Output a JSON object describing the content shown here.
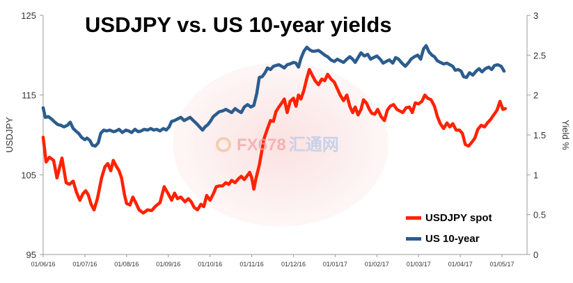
{
  "chart_data": {
    "type": "line",
    "title": "USDJPY vs. US 10-year yields",
    "ylabel_left": "USDJPY",
    "ylabel_right": "Yield %",
    "ylim_left": [
      95,
      125
    ],
    "ylim_right": [
      0,
      3
    ],
    "yticks_left": [
      "95",
      "105",
      "115",
      "125"
    ],
    "yticks_right": [
      "0",
      "0.5",
      "1",
      "1.5",
      "2",
      "2.5",
      "3"
    ],
    "x_tick_labels": [
      "01/06/16",
      "01/07/16",
      "01/08/16",
      "01/09/16",
      "01/10/16",
      "01/11/16",
      "01/12/16",
      "01/01/17",
      "01/02/17",
      "01/03/17",
      "01/04/17",
      "01/05/17"
    ],
    "x_range_months": [
      0,
      11.6
    ],
    "legend_position": "bottom-right",
    "grid": false,
    "series": [
      {
        "name": "USDJPY spot",
        "axis": "left",
        "color": "#ff2200",
        "points": [
          [
            0.0,
            109.7
          ],
          [
            0.07,
            106.6
          ],
          [
            0.15,
            107.2
          ],
          [
            0.25,
            106.8
          ],
          [
            0.33,
            104.6
          ],
          [
            0.45,
            107.1
          ],
          [
            0.55,
            104.0
          ],
          [
            0.63,
            103.8
          ],
          [
            0.72,
            104.2
          ],
          [
            0.8,
            102.8
          ],
          [
            0.88,
            101.8
          ],
          [
            0.95,
            102.6
          ],
          [
            1.02,
            103.0
          ],
          [
            1.08,
            102.5
          ],
          [
            1.15,
            101.3
          ],
          [
            1.22,
            100.6
          ],
          [
            1.3,
            102.0
          ],
          [
            1.4,
            104.6
          ],
          [
            1.48,
            106.0
          ],
          [
            1.55,
            106.4
          ],
          [
            1.62,
            105.5
          ],
          [
            1.68,
            106.8
          ],
          [
            1.75,
            106.1
          ],
          [
            1.82,
            105.5
          ],
          [
            1.88,
            104.6
          ],
          [
            1.95,
            102.5
          ],
          [
            2.0,
            101.4
          ],
          [
            2.08,
            101.2
          ],
          [
            2.15,
            102.2
          ],
          [
            2.22,
            101.5
          ],
          [
            2.3,
            100.6
          ],
          [
            2.4,
            100.2
          ],
          [
            2.5,
            100.6
          ],
          [
            2.6,
            100.5
          ],
          [
            2.7,
            101.1
          ],
          [
            2.8,
            101.5
          ],
          [
            2.9,
            103.5
          ],
          [
            3.0,
            102.6
          ],
          [
            3.08,
            101.8
          ],
          [
            3.15,
            102.7
          ],
          [
            3.22,
            102.0
          ],
          [
            3.3,
            102.2
          ],
          [
            3.4,
            101.6
          ],
          [
            3.48,
            102.0
          ],
          [
            3.55,
            101.6
          ],
          [
            3.62,
            100.9
          ],
          [
            3.7,
            100.6
          ],
          [
            3.78,
            101.3
          ],
          [
            3.85,
            101.0
          ],
          [
            3.92,
            102.4
          ],
          [
            4.0,
            101.8
          ],
          [
            4.08,
            102.6
          ],
          [
            4.15,
            103.5
          ],
          [
            4.22,
            103.6
          ],
          [
            4.3,
            103.6
          ],
          [
            4.38,
            104.0
          ],
          [
            4.45,
            103.8
          ],
          [
            4.52,
            104.3
          ],
          [
            4.6,
            104.0
          ],
          [
            4.68,
            104.5
          ],
          [
            4.75,
            104.8
          ],
          [
            4.82,
            104.4
          ],
          [
            4.88,
            104.8
          ],
          [
            4.95,
            105.3
          ],
          [
            5.0,
            104.6
          ],
          [
            5.05,
            103.2
          ],
          [
            5.1,
            104.5
          ],
          [
            5.18,
            106.2
          ],
          [
            5.25,
            108.2
          ],
          [
            5.3,
            109.6
          ],
          [
            5.38,
            110.8
          ],
          [
            5.45,
            111.8
          ],
          [
            5.52,
            111.7
          ],
          [
            5.58,
            112.9
          ],
          [
            5.65,
            113.5
          ],
          [
            5.72,
            114.0
          ],
          [
            5.78,
            114.5
          ],
          [
            5.85,
            112.8
          ],
          [
            5.92,
            114.2
          ],
          [
            6.0,
            114.6
          ],
          [
            6.06,
            113.6
          ],
          [
            6.12,
            115.0
          ],
          [
            6.18,
            114.5
          ],
          [
            6.25,
            115.6
          ],
          [
            6.32,
            117.1
          ],
          [
            6.38,
            118.2
          ],
          [
            6.45,
            117.5
          ],
          [
            6.52,
            116.8
          ],
          [
            6.6,
            116.3
          ],
          [
            6.68,
            117.0
          ],
          [
            6.75,
            116.8
          ],
          [
            6.82,
            117.6
          ],
          [
            6.9,
            117.0
          ],
          [
            6.98,
            116.6
          ],
          [
            7.05,
            115.8
          ],
          [
            7.12,
            115.0
          ],
          [
            7.2,
            114.3
          ],
          [
            7.28,
            115.0
          ],
          [
            7.35,
            113.6
          ],
          [
            7.42,
            112.8
          ],
          [
            7.48,
            113.5
          ],
          [
            7.55,
            112.5
          ],
          [
            7.62,
            113.2
          ],
          [
            7.68,
            114.4
          ],
          [
            7.75,
            114.0
          ],
          [
            7.82,
            113.2
          ],
          [
            7.88,
            112.7
          ],
          [
            7.95,
            112.6
          ],
          [
            8.02,
            113.2
          ],
          [
            8.1,
            112.3
          ],
          [
            8.18,
            111.8
          ],
          [
            8.25,
            113.1
          ],
          [
            8.32,
            113.6
          ],
          [
            8.4,
            113.8
          ],
          [
            8.48,
            113.2
          ],
          [
            8.55,
            113.0
          ],
          [
            8.62,
            112.8
          ],
          [
            8.7,
            113.4
          ],
          [
            8.78,
            113.5
          ],
          [
            8.85,
            112.8
          ],
          [
            8.92,
            114.0
          ],
          [
            9.0,
            113.9
          ],
          [
            9.08,
            114.2
          ],
          [
            9.15,
            115.0
          ],
          [
            9.22,
            114.6
          ],
          [
            9.3,
            114.4
          ],
          [
            9.38,
            113.6
          ],
          [
            9.45,
            112.3
          ],
          [
            9.52,
            111.4
          ],
          [
            9.6,
            110.8
          ],
          [
            9.68,
            111.5
          ],
          [
            9.75,
            111.0
          ],
          [
            9.82,
            111.4
          ],
          [
            9.9,
            110.6
          ],
          [
            9.98,
            110.6
          ],
          [
            10.05,
            110.2
          ],
          [
            10.12,
            108.8
          ],
          [
            10.2,
            108.6
          ],
          [
            10.28,
            109.1
          ],
          [
            10.35,
            109.6
          ],
          [
            10.42,
            110.7
          ],
          [
            10.5,
            111.2
          ],
          [
            10.58,
            111.0
          ],
          [
            10.65,
            111.5
          ],
          [
            10.72,
            111.9
          ],
          [
            10.8,
            112.5
          ],
          [
            10.88,
            113.1
          ],
          [
            10.95,
            114.2
          ],
          [
            11.02,
            113.2
          ],
          [
            11.08,
            113.3
          ]
        ]
      },
      {
        "name": "US 10-year",
        "axis": "right",
        "color": "#2b5c8e",
        "points": [
          [
            0.0,
            1.84
          ],
          [
            0.05,
            1.72
          ],
          [
            0.12,
            1.73
          ],
          [
            0.2,
            1.7
          ],
          [
            0.28,
            1.66
          ],
          [
            0.35,
            1.63
          ],
          [
            0.42,
            1.62
          ],
          [
            0.5,
            1.6
          ],
          [
            0.58,
            1.62
          ],
          [
            0.65,
            1.66
          ],
          [
            0.72,
            1.58
          ],
          [
            0.78,
            1.55
          ],
          [
            0.85,
            1.52
          ],
          [
            0.92,
            1.47
          ],
          [
            1.0,
            1.44
          ],
          [
            1.05,
            1.46
          ],
          [
            1.12,
            1.43
          ],
          [
            1.18,
            1.37
          ],
          [
            1.25,
            1.36
          ],
          [
            1.32,
            1.4
          ],
          [
            1.38,
            1.52
          ],
          [
            1.45,
            1.56
          ],
          [
            1.52,
            1.55
          ],
          [
            1.6,
            1.56
          ],
          [
            1.68,
            1.54
          ],
          [
            1.75,
            1.55
          ],
          [
            1.82,
            1.57
          ],
          [
            1.9,
            1.53
          ],
          [
            1.98,
            1.56
          ],
          [
            2.05,
            1.55
          ],
          [
            2.12,
            1.53
          ],
          [
            2.2,
            1.57
          ],
          [
            2.28,
            1.54
          ],
          [
            2.35,
            1.55
          ],
          [
            2.42,
            1.57
          ],
          [
            2.5,
            1.56
          ],
          [
            2.58,
            1.58
          ],
          [
            2.65,
            1.56
          ],
          [
            2.72,
            1.57
          ],
          [
            2.8,
            1.55
          ],
          [
            2.88,
            1.58
          ],
          [
            2.95,
            1.56
          ],
          [
            3.02,
            1.6
          ],
          [
            3.08,
            1.67
          ],
          [
            3.15,
            1.68
          ],
          [
            3.22,
            1.7
          ],
          [
            3.3,
            1.72
          ],
          [
            3.38,
            1.68
          ],
          [
            3.45,
            1.7
          ],
          [
            3.52,
            1.72
          ],
          [
            3.6,
            1.68
          ],
          [
            3.68,
            1.64
          ],
          [
            3.75,
            1.6
          ],
          [
            3.82,
            1.56
          ],
          [
            3.88,
            1.6
          ],
          [
            3.95,
            1.63
          ],
          [
            4.02,
            1.68
          ],
          [
            4.08,
            1.73
          ],
          [
            4.15,
            1.76
          ],
          [
            4.22,
            1.79
          ],
          [
            4.3,
            1.8
          ],
          [
            4.38,
            1.82
          ],
          [
            4.45,
            1.8
          ],
          [
            4.52,
            1.78
          ],
          [
            4.6,
            1.83
          ],
          [
            4.68,
            1.8
          ],
          [
            4.75,
            1.78
          ],
          [
            4.82,
            1.85
          ],
          [
            4.9,
            1.88
          ],
          [
            4.98,
            1.85
          ],
          [
            5.05,
            1.87
          ],
          [
            5.12,
            2.02
          ],
          [
            5.18,
            2.22
          ],
          [
            5.25,
            2.23
          ],
          [
            5.32,
            2.28
          ],
          [
            5.38,
            2.34
          ],
          [
            5.45,
            2.32
          ],
          [
            5.52,
            2.36
          ],
          [
            5.58,
            2.37
          ],
          [
            5.65,
            2.38
          ],
          [
            5.72,
            2.36
          ],
          [
            5.78,
            2.34
          ],
          [
            5.85,
            2.38
          ],
          [
            5.92,
            2.39
          ],
          [
            6.0,
            2.41
          ],
          [
            6.06,
            2.4
          ],
          [
            6.12,
            2.35
          ],
          [
            6.18,
            2.46
          ],
          [
            6.25,
            2.55
          ],
          [
            6.32,
            2.6
          ],
          [
            6.38,
            2.57
          ],
          [
            6.45,
            2.55
          ],
          [
            6.52,
            2.55
          ],
          [
            6.6,
            2.56
          ],
          [
            6.68,
            2.53
          ],
          [
            6.75,
            2.5
          ],
          [
            6.82,
            2.48
          ],
          [
            6.9,
            2.44
          ],
          [
            6.98,
            2.42
          ],
          [
            7.05,
            2.45
          ],
          [
            7.12,
            2.43
          ],
          [
            7.2,
            2.41
          ],
          [
            7.28,
            2.45
          ],
          [
            7.35,
            2.48
          ],
          [
            7.42,
            2.45
          ],
          [
            7.48,
            2.41
          ],
          [
            7.55,
            2.47
          ],
          [
            7.62,
            2.53
          ],
          [
            7.7,
            2.49
          ],
          [
            7.78,
            2.51
          ],
          [
            7.85,
            2.45
          ],
          [
            7.92,
            2.47
          ],
          [
            8.0,
            2.49
          ],
          [
            8.08,
            2.45
          ],
          [
            8.15,
            2.4
          ],
          [
            8.22,
            2.42
          ],
          [
            8.3,
            2.44
          ],
          [
            8.38,
            2.4
          ],
          [
            8.45,
            2.47
          ],
          [
            8.52,
            2.45
          ],
          [
            8.6,
            2.4
          ],
          [
            8.68,
            2.36
          ],
          [
            8.75,
            2.4
          ],
          [
            8.82,
            2.45
          ],
          [
            8.9,
            2.48
          ],
          [
            8.98,
            2.5
          ],
          [
            9.05,
            2.45
          ],
          [
            9.12,
            2.58
          ],
          [
            9.18,
            2.62
          ],
          [
            9.25,
            2.54
          ],
          [
            9.32,
            2.5
          ],
          [
            9.38,
            2.48
          ],
          [
            9.45,
            2.43
          ],
          [
            9.52,
            2.41
          ],
          [
            9.6,
            2.39
          ],
          [
            9.68,
            2.4
          ],
          [
            9.75,
            2.38
          ],
          [
            9.82,
            2.36
          ],
          [
            9.88,
            2.31
          ],
          [
            9.95,
            2.32
          ],
          [
            10.02,
            2.3
          ],
          [
            10.08,
            2.23
          ],
          [
            10.15,
            2.22
          ],
          [
            10.22,
            2.28
          ],
          [
            10.3,
            2.25
          ],
          [
            10.38,
            2.3
          ],
          [
            10.45,
            2.33
          ],
          [
            10.52,
            2.29
          ],
          [
            10.6,
            2.33
          ],
          [
            10.68,
            2.35
          ],
          [
            10.75,
            2.32
          ],
          [
            10.82,
            2.37
          ],
          [
            10.9,
            2.38
          ],
          [
            10.98,
            2.36
          ],
          [
            11.05,
            2.3
          ]
        ]
      }
    ]
  },
  "watermark": {
    "text_latin": "FX678",
    "text_cn": "汇通网"
  }
}
